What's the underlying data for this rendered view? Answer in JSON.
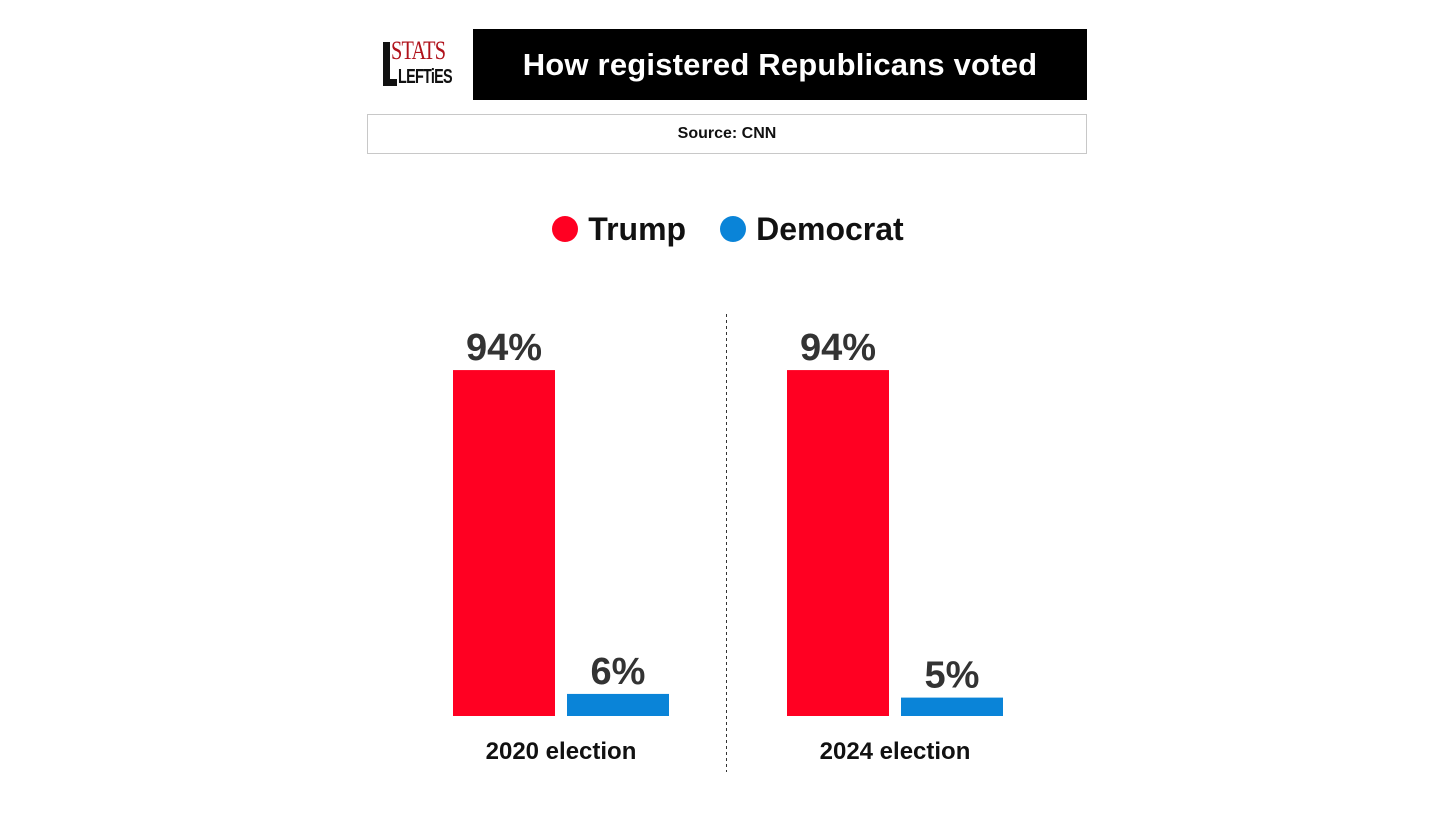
{
  "logo": {
    "line1": "STATS",
    "line2": "LEFTiES"
  },
  "header": {
    "title": "How registered Republicans voted"
  },
  "source": {
    "text": "Source: CNN"
  },
  "colors": {
    "trump": "#ff0022",
    "democrat": "#0a84d8"
  },
  "chart_data": {
    "type": "bar",
    "title": "How registered Republicans voted",
    "categories": [
      "2020 election",
      "2024 election"
    ],
    "series": [
      {
        "name": "Trump",
        "values": [
          94,
          94
        ],
        "labels": [
          "94%",
          "94%"
        ]
      },
      {
        "name": "Democrat",
        "values": [
          6,
          5
        ],
        "labels": [
          "6%",
          "5%"
        ]
      }
    ],
    "ylim": [
      0,
      100
    ],
    "grid": false,
    "legend_position": "top-center"
  }
}
